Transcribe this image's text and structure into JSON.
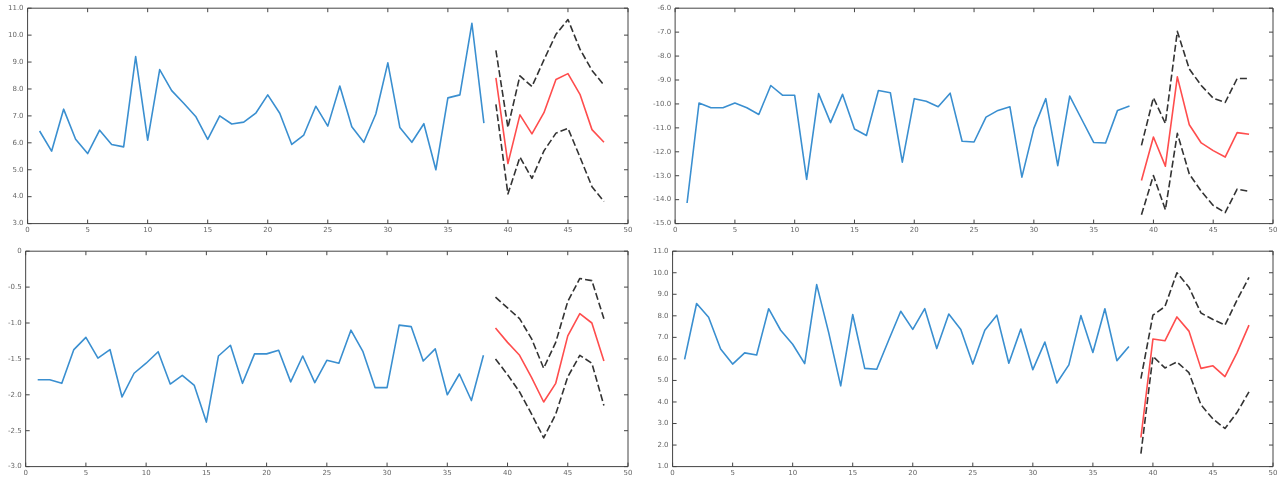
{
  "chart_data": [
    {
      "type": "line",
      "xlim": [
        0,
        50
      ],
      "xticks": [
        0,
        5,
        10,
        15,
        20,
        25,
        30,
        35,
        40,
        45,
        50
      ],
      "ylim": [
        3,
        11
      ],
      "yticks": [
        {
          "value": 3,
          "label": "3.0"
        },
        {
          "value": 4,
          "label": "4.0"
        },
        {
          "value": 5,
          "label": "5.0"
        },
        {
          "value": 6,
          "label": "6.0"
        },
        {
          "value": 7,
          "label": "7.0"
        },
        {
          "value": 8,
          "label": "8.0"
        },
        {
          "value": 9,
          "label": "9.0"
        },
        {
          "value": 10,
          "label": "10.0"
        },
        {
          "value": 11,
          "label": "11.0"
        }
      ],
      "grid": false,
      "legend": false,
      "series": [
        {
          "color": "#3a8fd0",
          "x": [
            1,
            2,
            3,
            4,
            5,
            6,
            7,
            8,
            9,
            10,
            11,
            12,
            13,
            14,
            15,
            16,
            17,
            18,
            19,
            20,
            21,
            22,
            23,
            24,
            25,
            26,
            27,
            28,
            29,
            30,
            31,
            32,
            33,
            34,
            35,
            36,
            37,
            38
          ],
          "values": [
            6.44,
            5.69,
            7.25,
            6.13,
            5.6,
            6.47,
            5.94,
            5.85,
            9.2,
            6.1,
            8.72,
            7.94,
            7.47,
            6.98,
            6.13,
            7.0,
            6.7,
            6.77,
            7.1,
            7.78,
            7.1,
            5.94,
            6.29,
            7.36,
            6.62,
            8.11,
            6.6,
            6.02,
            7.07,
            8.97,
            6.57,
            6.02,
            6.71,
            5.0,
            7.67,
            7.78,
            10.44,
            6.73
          ]
        },
        {
          "color": "#ff4d4d",
          "x": [
            39,
            40,
            41,
            42,
            43,
            44,
            45,
            46,
            47,
            48
          ],
          "values": [
            8.41,
            5.23,
            7.04,
            6.33,
            7.12,
            8.35,
            8.57,
            7.8,
            6.49,
            6.02
          ]
        },
        {
          "color": "#333333",
          "line_style": "dashed",
          "x": [
            39,
            40,
            41,
            42,
            43,
            44,
            45,
            46,
            47,
            48
          ],
          "values": [
            9.43,
            6.57,
            8.49,
            8.09,
            9.08,
            10.03,
            10.58,
            9.48,
            8.69,
            8.14
          ]
        },
        {
          "color": "#333333",
          "line_style": "dashed",
          "x": [
            39,
            40,
            41,
            42,
            43,
            44,
            45,
            46,
            47,
            48
          ],
          "values": [
            7.43,
            4.1,
            5.47,
            4.68,
            5.7,
            6.36,
            6.54,
            5.47,
            4.37,
            3.82
          ]
        }
      ]
    },
    {
      "type": "line",
      "xlim": [
        0,
        50
      ],
      "xticks": [
        0,
        5,
        10,
        15,
        20,
        25,
        30,
        35,
        40,
        45,
        50
      ],
      "ylim": [
        -15,
        -6
      ],
      "yticks": [
        {
          "value": -15,
          "label": "-15.0"
        },
        {
          "value": -14,
          "label": "-14.0"
        },
        {
          "value": -13,
          "label": "-13.0"
        },
        {
          "value": -12,
          "label": "-12.0"
        },
        {
          "value": -11,
          "label": "-11.0"
        },
        {
          "value": -10,
          "label": "-10.0"
        },
        {
          "value": -9,
          "label": "-9.0"
        },
        {
          "value": -8,
          "label": "-8.0"
        },
        {
          "value": -7,
          "label": "-7.0"
        },
        {
          "value": -6,
          "label": "-6.0"
        }
      ],
      "grid": false,
      "legend": false,
      "series": [
        {
          "color": "#3a8fd0",
          "x": [
            1,
            2,
            3,
            4,
            5,
            6,
            7,
            8,
            9,
            10,
            11,
            12,
            13,
            14,
            15,
            16,
            17,
            18,
            19,
            20,
            21,
            22,
            23,
            24,
            25,
            26,
            27,
            28,
            29,
            30,
            31,
            32,
            33,
            34,
            35,
            36,
            37,
            38
          ],
          "values": [
            -14.14,
            -9.96,
            -10.16,
            -10.16,
            -9.96,
            -10.16,
            -10.44,
            -9.23,
            -9.64,
            -9.64,
            -13.15,
            -9.57,
            -10.78,
            -9.6,
            -11.05,
            -11.32,
            -9.44,
            -9.53,
            -12.43,
            -9.78,
            -9.89,
            -10.12,
            -9.55,
            -11.56,
            -11.59,
            -10.55,
            -10.27,
            -10.12,
            -13.06,
            -11.02,
            -9.78,
            -12.58,
            -9.67,
            -10.64,
            -11.61,
            -11.63,
            -10.27,
            -10.09
          ]
        },
        {
          "color": "#ff4d4d",
          "x": [
            39,
            40,
            41,
            42,
            43,
            44,
            45,
            46,
            47,
            48
          ],
          "values": [
            -13.2,
            -11.38,
            -12.6,
            -8.87,
            -10.87,
            -11.63,
            -11.95,
            -12.22,
            -11.2,
            -11.27
          ]
        },
        {
          "color": "#333333",
          "line_style": "dashed",
          "x": [
            39,
            40,
            41,
            42,
            43,
            44,
            45,
            46,
            47,
            48
          ],
          "values": [
            -11.73,
            -9.74,
            -10.82,
            -6.97,
            -8.54,
            -9.23,
            -9.76,
            -9.94,
            -8.94,
            -8.94
          ]
        },
        {
          "color": "#333333",
          "line_style": "dashed",
          "x": [
            39,
            40,
            41,
            42,
            43,
            44,
            45,
            46,
            47,
            48
          ],
          "values": [
            -14.63,
            -12.99,
            -14.42,
            -11.23,
            -12.93,
            -13.65,
            -14.24,
            -14.54,
            -13.56,
            -13.65
          ]
        }
      ]
    },
    {
      "type": "line",
      "xlim": [
        0,
        50
      ],
      "xticks": [
        0,
        5,
        10,
        15,
        20,
        25,
        30,
        35,
        40,
        45,
        50
      ],
      "ylim": [
        -3,
        0
      ],
      "yticks": [
        {
          "value": -3,
          "label": "-3.0"
        },
        {
          "value": -2.5,
          "label": "-2.5"
        },
        {
          "value": -2,
          "label": "-2.0"
        },
        {
          "value": -1.5,
          "label": "-1.5"
        },
        {
          "value": -1,
          "label": "-1.0"
        },
        {
          "value": -0.5,
          "label": "-0.5"
        },
        0
      ],
      "grid": false,
      "legend": false,
      "series": [
        {
          "color": "#3a8fd0",
          "x": [
            1,
            2,
            3,
            4,
            5,
            6,
            7,
            8,
            9,
            10,
            11,
            12,
            13,
            14,
            15,
            16,
            17,
            18,
            19,
            20,
            21,
            22,
            23,
            24,
            25,
            26,
            27,
            28,
            29,
            30,
            31,
            32,
            33,
            34,
            35,
            36,
            37,
            38
          ],
          "values": [
            -1.79,
            -1.79,
            -1.84,
            -1.37,
            -1.2,
            -1.49,
            -1.37,
            -2.03,
            -1.7,
            -1.56,
            -1.4,
            -1.85,
            -1.73,
            -1.87,
            -2.38,
            -1.46,
            -1.31,
            -1.84,
            -1.43,
            -1.43,
            -1.38,
            -1.82,
            -1.46,
            -1.83,
            -1.52,
            -1.56,
            -1.1,
            -1.4,
            -1.9,
            -1.9,
            -1.03,
            -1.05,
            -1.53,
            -1.36,
            -2.0,
            -1.71,
            -2.08,
            -1.45
          ]
        },
        {
          "color": "#ff4d4d",
          "x": [
            39,
            40,
            41,
            42,
            43,
            44,
            45,
            46,
            47,
            48
          ],
          "values": [
            -1.07,
            -1.27,
            -1.45,
            -1.76,
            -2.1,
            -1.84,
            -1.18,
            -0.87,
            -1.0,
            -1.53
          ]
        },
        {
          "color": "#333333",
          "line_style": "dashed",
          "x": [
            39,
            40,
            41,
            42,
            43,
            44,
            45,
            46,
            47,
            48
          ],
          "values": [
            -0.64,
            -0.79,
            -0.94,
            -1.22,
            -1.63,
            -1.27,
            -0.7,
            -0.38,
            -0.41,
            -0.94
          ]
        },
        {
          "color": "#333333",
          "line_style": "dashed",
          "x": [
            39,
            40,
            41,
            42,
            43,
            44,
            45,
            46,
            47,
            48
          ],
          "values": [
            -1.5,
            -1.72,
            -1.96,
            -2.27,
            -2.6,
            -2.27,
            -1.75,
            -1.45,
            -1.56,
            -2.15
          ]
        }
      ]
    },
    {
      "type": "line",
      "xlim": [
        0,
        50
      ],
      "xticks": [
        0,
        5,
        10,
        15,
        20,
        25,
        30,
        35,
        40,
        45,
        50
      ],
      "ylim": [
        1,
        11
      ],
      "yticks": [
        {
          "value": 1,
          "label": "1.0"
        },
        {
          "value": 2,
          "label": "2.0"
        },
        {
          "value": 3,
          "label": "3.0"
        },
        {
          "value": 4,
          "label": "4.0"
        },
        {
          "value": 5,
          "label": "5.0"
        },
        {
          "value": 6,
          "label": "6.0"
        },
        {
          "value": 7,
          "label": "7.0"
        },
        {
          "value": 8,
          "label": "8.0"
        },
        {
          "value": 9,
          "label": "9.0"
        },
        {
          "value": 10,
          "label": "10.0"
        },
        {
          "value": 11,
          "label": "11.0"
        }
      ],
      "grid": false,
      "legend": false,
      "series": [
        {
          "color": "#3a8fd0",
          "x": [
            1,
            2,
            3,
            4,
            5,
            6,
            7,
            8,
            9,
            10,
            11,
            12,
            13,
            14,
            15,
            16,
            17,
            18,
            19,
            20,
            21,
            22,
            23,
            24,
            25,
            26,
            27,
            28,
            29,
            30,
            31,
            32,
            33,
            34,
            35,
            36,
            37,
            38
          ],
          "values": [
            5.98,
            8.57,
            7.93,
            6.46,
            5.76,
            6.28,
            6.18,
            8.33,
            7.33,
            6.68,
            5.78,
            9.45,
            7.22,
            4.75,
            8.06,
            5.56,
            5.52,
            6.88,
            8.21,
            7.37,
            8.33,
            6.48,
            8.08,
            7.37,
            5.76,
            7.33,
            8.03,
            5.8,
            7.39,
            5.5,
            6.78,
            4.88,
            5.72,
            8.01,
            6.3,
            8.33,
            5.92,
            6.58
          ]
        },
        {
          "color": "#ff4d4d",
          "x": [
            39,
            40,
            41,
            42,
            43,
            44,
            45,
            46,
            47,
            48
          ],
          "values": [
            2.35,
            6.92,
            6.84,
            7.95,
            7.29,
            5.56,
            5.68,
            5.18,
            6.28,
            7.57
          ]
        },
        {
          "color": "#333333",
          "line_style": "dashed",
          "x": [
            39,
            40,
            41,
            42,
            43,
            44,
            45,
            46,
            47,
            48
          ],
          "values": [
            5.08,
            8.03,
            8.43,
            10.0,
            9.33,
            8.13,
            7.83,
            7.57,
            8.73,
            9.78
          ]
        },
        {
          "color": "#333333",
          "line_style": "dashed",
          "x": [
            39,
            40,
            41,
            42,
            43,
            44,
            45,
            46,
            47,
            48
          ],
          "values": [
            1.6,
            6.12,
            5.58,
            5.86,
            5.36,
            3.87,
            3.21,
            2.77,
            3.51,
            4.47
          ]
        }
      ]
    }
  ]
}
